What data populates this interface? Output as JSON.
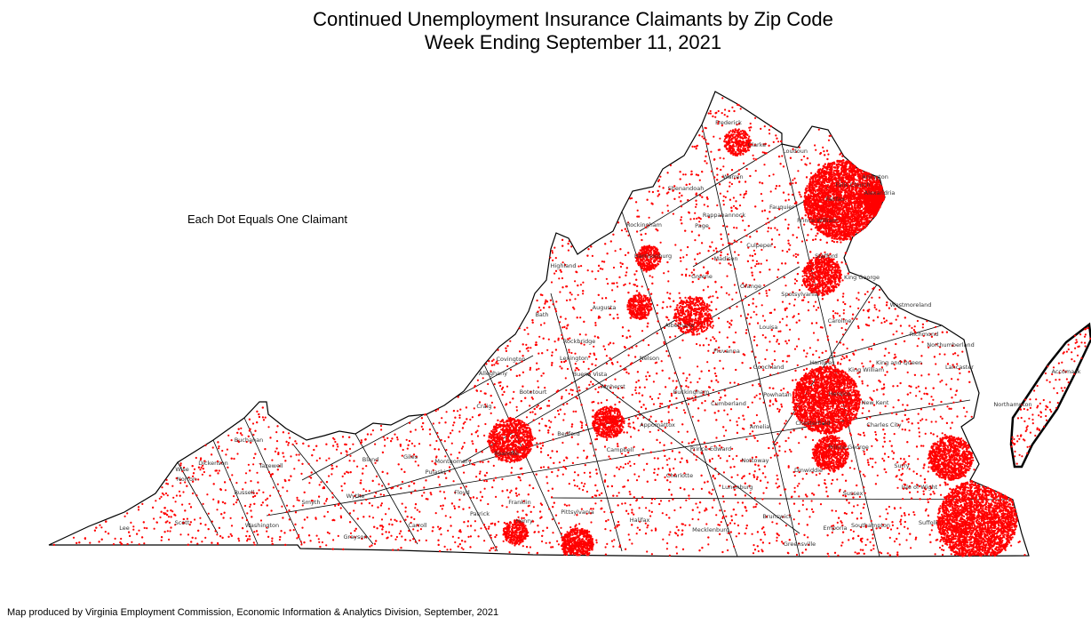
{
  "title": "Continued Unemployment Insurance Claimants by Zip Code",
  "subtitle": "Week Ending September 11, 2021",
  "legend": "Each Dot Equals One Claimant",
  "credit": "Map produced by Virginia Employment Commission, Economic Information & Analytics Division,  September, 2021",
  "colors": {
    "dot": "#ff0000",
    "county_border": "#000000",
    "zip_border": "#aaaaaa"
  },
  "county_labels": [
    "Frederick",
    "Clarke",
    "Loudoun",
    "Arlington",
    "Falls Church",
    "Fairfax",
    "Alexandria",
    "Warren",
    "Shenandoah",
    "Fauquier",
    "Prince William",
    "Rappahannock",
    "Rockingham",
    "Page",
    "Culpeper",
    "Madison",
    "Harrisonburg",
    "Highland",
    "Greene",
    "Stafford",
    "Orange",
    "King George",
    "Spotsylvania",
    "Augusta",
    "Bath",
    "Albemarle",
    "Louisa",
    "Caroline",
    "Westmoreland",
    "Rockbridge",
    "Covington",
    "Alleghany",
    "Lexington",
    "Buena Vista",
    "Nelson",
    "Fluvanna",
    "Goochland",
    "Hanover",
    "King William",
    "King and Queen",
    "Richmond",
    "Northumberland",
    "Lancaster",
    "Botetourt",
    "Amherst",
    "Buckingham",
    "Powhatan",
    "Cumberland",
    "Henrico",
    "Craig",
    "Roanoke",
    "Bedford",
    "Appomattox",
    "Campbell",
    "Amelia",
    "Chesterfield",
    "New Kent",
    "Charles City",
    "Prince Edward",
    "Nottoway",
    "Prince George",
    "Dinwiddie",
    "Surry",
    "Charlotte",
    "Lunenburg",
    "Sussex",
    "Isle of Wight",
    "Franklin",
    "Pittsylvania",
    "Halifax",
    "Mecklenburg",
    "Brunswick",
    "Southampton",
    "Greensville",
    "Emporia",
    "Suffolk",
    "Patrick",
    "Henry",
    "Floyd",
    "Montgomery",
    "Pulaski",
    "Giles",
    "Bland",
    "Wythe",
    "Carroll",
    "Grayson",
    "Smyth",
    "Washington",
    "Tazewell",
    "Buchanan",
    "Dickenson",
    "Russell",
    "Wise",
    "Norton",
    "Scott",
    "Lee",
    "Northampton",
    "Accomack"
  ]
}
